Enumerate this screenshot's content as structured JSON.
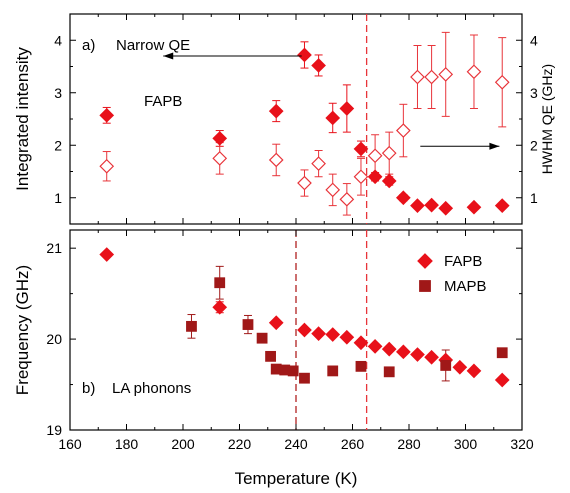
{
  "colors": {
    "fapb": "#e8111a",
    "fapb_open": "#e8343a",
    "mapb": "#a01818",
    "vline_265": "#e8343a",
    "vline_240": "#b02020"
  },
  "chart_data": [
    {
      "panel": "top",
      "type": "scatter",
      "xlabel": "Temperature (K)",
      "ylabel": "Integrated intensity",
      "y2label": "HWHM QE (GHz)",
      "xlim": [
        160,
        320
      ],
      "ylim": [
        0.5,
        4.5
      ],
      "y2lim": [
        0.5,
        4.5
      ],
      "xticks": [
        160,
        180,
        200,
        220,
        240,
        260,
        280,
        300,
        320
      ],
      "yticks": [
        1,
        2,
        3,
        4
      ],
      "y2ticks": [
        1,
        2,
        3,
        4
      ],
      "labels": {
        "panel": "a)",
        "title": "Narrow QE",
        "series_label": "FAPB"
      },
      "vlines": [
        265
      ],
      "series": [
        {
          "marker": "filled-diamond",
          "axis": "left",
          "x": [
            173,
            213,
            233,
            243,
            248,
            253,
            258,
            263,
            268,
            273,
            278,
            283,
            288,
            293,
            303,
            313
          ],
          "y": [
            2.57,
            2.13,
            2.65,
            3.72,
            3.52,
            2.52,
            2.7,
            1.93,
            1.4,
            1.32,
            1.0,
            0.85,
            0.86,
            0.8,
            0.82,
            0.85
          ],
          "err": [
            0.15,
            0.15,
            0.2,
            0.25,
            0.2,
            0.28,
            0.45,
            0.15,
            0.08,
            0.08,
            0.06,
            0.05,
            0.05,
            0.05,
            0.05,
            0.05
          ]
        },
        {
          "marker": "open-diamond",
          "axis": "right",
          "x": [
            173,
            213,
            233,
            243,
            248,
            253,
            258,
            263,
            268,
            273,
            278,
            283,
            288,
            293,
            303,
            313
          ],
          "y": [
            1.6,
            1.75,
            1.72,
            1.28,
            1.65,
            1.15,
            0.97,
            1.4,
            1.8,
            1.85,
            2.28,
            3.3,
            3.3,
            3.35,
            3.4,
            3.2
          ],
          "err": [
            0.28,
            0.3,
            0.3,
            0.25,
            0.25,
            0.3,
            0.3,
            0.35,
            0.4,
            0.4,
            0.5,
            0.6,
            0.6,
            0.8,
            0.7,
            0.85
          ]
        }
      ],
      "arrows": [
        {
          "direction": "left",
          "from_x": 242,
          "to_x": 193,
          "y": 3.7
        },
        {
          "direction": "right",
          "from_x": 284,
          "to_x": 312,
          "y": 1.98
        }
      ]
    },
    {
      "panel": "bottom",
      "type": "scatter",
      "xlabel": "Temperature (K)",
      "ylabel": "Frequency (GHz)",
      "xlim": [
        160,
        320
      ],
      "ylim": [
        19,
        21.2
      ],
      "xticks": [
        160,
        180,
        200,
        220,
        240,
        260,
        280,
        300,
        320
      ],
      "xticklabels": [
        "160",
        "180",
        "200",
        "220",
        "240",
        "260",
        "280",
        "300",
        "320"
      ],
      "yticks": [
        19,
        20,
        21
      ],
      "labels": {
        "panel": "b)",
        "title": "LA phonons"
      },
      "vlines": [
        240,
        265
      ],
      "legend": {
        "position": "top-right"
      },
      "series": [
        {
          "name": "FAPB",
          "marker": "filled-diamond",
          "x": [
            173,
            213,
            233,
            243,
            248,
            253,
            258,
            263,
            268,
            273,
            278,
            283,
            288,
            293,
            298,
            303,
            313
          ],
          "y": [
            20.93,
            20.35,
            20.18,
            20.1,
            20.06,
            20.05,
            20.02,
            19.96,
            19.92,
            19.89,
            19.86,
            19.83,
            19.8,
            19.77,
            19.69,
            19.65,
            19.55
          ],
          "err": [
            0,
            0.06,
            0,
            0,
            0,
            0,
            0,
            0,
            0,
            0,
            0,
            0,
            0,
            0,
            0,
            0,
            0
          ]
        },
        {
          "name": "MAPB",
          "marker": "filled-square",
          "x": [
            203,
            213,
            223,
            228,
            231,
            233,
            236,
            239,
            243,
            253,
            263,
            273,
            293,
            313
          ],
          "y": [
            20.14,
            20.62,
            20.16,
            20.01,
            19.81,
            19.67,
            19.66,
            19.65,
            19.57,
            19.65,
            19.7,
            19.64,
            19.71,
            19.85
          ],
          "err": [
            0.13,
            0.18,
            0.1,
            0,
            0,
            0,
            0,
            0,
            0,
            0,
            0,
            0,
            0.17,
            0
          ]
        }
      ]
    }
  ]
}
